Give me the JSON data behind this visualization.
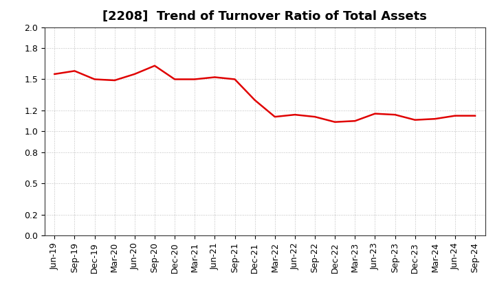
{
  "title": "[2208]  Trend of Turnover Ratio of Total Assets",
  "labels": [
    "Jun-19",
    "Sep-19",
    "Dec-19",
    "Mar-20",
    "Jun-20",
    "Sep-20",
    "Dec-20",
    "Mar-21",
    "Jun-21",
    "Sep-21",
    "Dec-21",
    "Mar-22",
    "Jun-22",
    "Sep-22",
    "Dec-22",
    "Mar-23",
    "Jun-23",
    "Sep-23",
    "Dec-23",
    "Mar-24",
    "Jun-24",
    "Sep-24"
  ],
  "values": [
    1.55,
    1.58,
    1.5,
    1.49,
    1.55,
    1.63,
    1.5,
    1.5,
    1.52,
    1.5,
    1.3,
    1.14,
    1.16,
    1.14,
    1.09,
    1.1,
    1.17,
    1.16,
    1.11,
    1.12,
    1.15,
    1.15
  ],
  "line_color": "#e00000",
  "line_width": 1.8,
  "ylim": [
    0.0,
    2.0
  ],
  "yticks": [
    0.0,
    0.2,
    0.5,
    0.8,
    1.0,
    1.2,
    1.5,
    1.8,
    2.0
  ],
  "ytick_labels": [
    "0.0",
    "0.2",
    "0.5",
    "0.8",
    "1.0",
    "1.2",
    "1.5",
    "1.8",
    "2.0"
  ],
  "background_color": "#ffffff",
  "plot_bg_color": "#ffffff",
  "grid_color": "#bbbbbb",
  "title_fontsize": 13,
  "tick_fontsize": 9
}
